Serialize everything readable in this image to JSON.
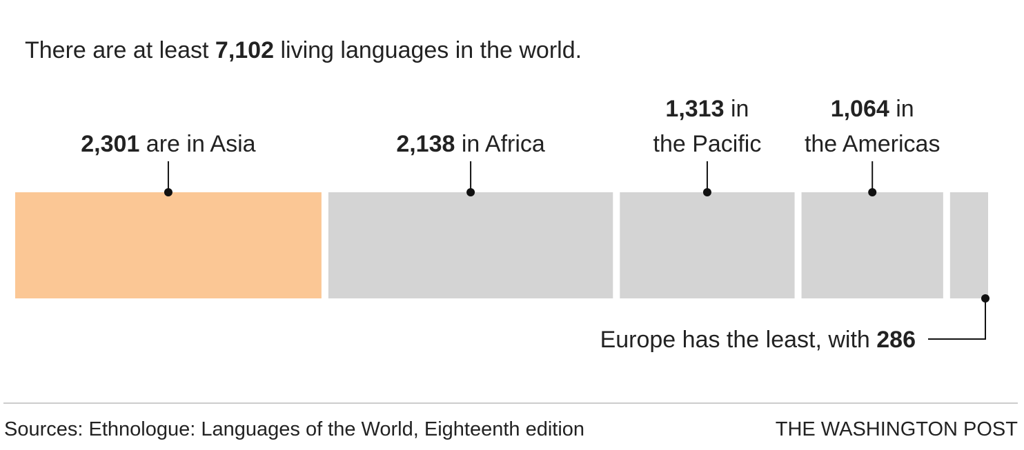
{
  "chart_data": {
    "type": "stacked-bar",
    "title": {
      "before": "There are at least ",
      "value": 7102,
      "label": "7,102",
      "after": " living languages in the world."
    },
    "values": [
      2301,
      2138,
      1313,
      1064,
      286
    ],
    "value_labels": [
      "2,301",
      "2,138",
      "1,313",
      "1,064",
      "286"
    ],
    "colors": [
      "#fbc795",
      "#d4d4d4",
      "#d4d4d4",
      "#d4d4d4",
      "#d4d4d4"
    ],
    "label_parts": [
      {
        "after": " are in Asia"
      },
      {
        "after": " in Africa"
      },
      {
        "after": " in",
        "line2": "the Pacific"
      },
      {
        "after": " in",
        "line2": "the Americas"
      },
      {
        "before": "Europe has the least, with "
      }
    ],
    "source": "Sources: Ethnologue: Languages of the World, Eighteenth edition",
    "credit": "THE WASHINGTON POST"
  }
}
